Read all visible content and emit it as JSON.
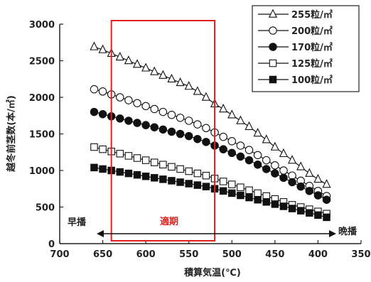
{
  "chart_data": {
    "type": "line",
    "xlabel": "積算気温(℃)",
    "ylabel": "越冬前茎数(本/㎡)",
    "xlim": [
      700,
      350
    ],
    "ylim": [
      0,
      3000
    ],
    "x_ticks": [
      "700",
      "650",
      "600",
      "550",
      "500",
      "450",
      "400",
      "350"
    ],
    "y_ticks": [
      "0",
      "500",
      "1000",
      "1500",
      "2000",
      "2500",
      "3000"
    ],
    "x": [
      660,
      650,
      640,
      630,
      620,
      610,
      600,
      590,
      580,
      570,
      560,
      550,
      540,
      530,
      520,
      510,
      500,
      490,
      480,
      470,
      460,
      450,
      440,
      430,
      420,
      410,
      400,
      390
    ],
    "series": [
      {
        "name": "255粒/㎡",
        "marker": "triangle-open",
        "values": [
          2690,
          2650,
          2600,
          2550,
          2500,
          2450,
          2400,
          2350,
          2300,
          2250,
          2200,
          2150,
          2080,
          2000,
          1910,
          1840,
          1760,
          1680,
          1600,
          1510,
          1420,
          1320,
          1230,
          1140,
          1050,
          960,
          880,
          810
        ]
      },
      {
        "name": "200粒/㎡",
        "marker": "circle-open",
        "values": [
          2110,
          2080,
          2040,
          2000,
          1960,
          1920,
          1880,
          1840,
          1800,
          1760,
          1720,
          1680,
          1630,
          1580,
          1520,
          1460,
          1400,
          1340,
          1280,
          1210,
          1140,
          1070,
          1000,
          930,
          860,
          790,
          720,
          650
        ]
      },
      {
        "name": "170粒/㎡",
        "marker": "circle-filled",
        "values": [
          1800,
          1770,
          1740,
          1710,
          1680,
          1650,
          1620,
          1590,
          1560,
          1530,
          1500,
          1470,
          1430,
          1390,
          1340,
          1290,
          1240,
          1190,
          1140,
          1080,
          1020,
          960,
          900,
          840,
          780,
          720,
          660,
          600
        ]
      },
      {
        "name": "125粒/㎡",
        "marker": "square-open",
        "values": [
          1320,
          1290,
          1260,
          1230,
          1200,
          1170,
          1140,
          1110,
          1080,
          1050,
          1020,
          990,
          960,
          930,
          890,
          850,
          810,
          770,
          730,
          690,
          650,
          610,
          570,
          530,
          500,
          470,
          440,
          410
        ]
      },
      {
        "name": "100粒/㎡",
        "marker": "square-filled",
        "values": [
          1040,
          1020,
          1000,
          980,
          960,
          940,
          920,
          900,
          880,
          860,
          840,
          820,
          800,
          780,
          750,
          720,
          690,
          660,
          630,
          600,
          570,
          540,
          510,
          480,
          450,
          420,
          390,
          360
        ]
      }
    ],
    "legend_position": "top-right",
    "grid": false,
    "annotations": {
      "early": "早播",
      "late": "晩播",
      "optimal": "適期",
      "optimal_range": [
        640,
        520
      ],
      "optimal_color": "#e02020"
    }
  }
}
